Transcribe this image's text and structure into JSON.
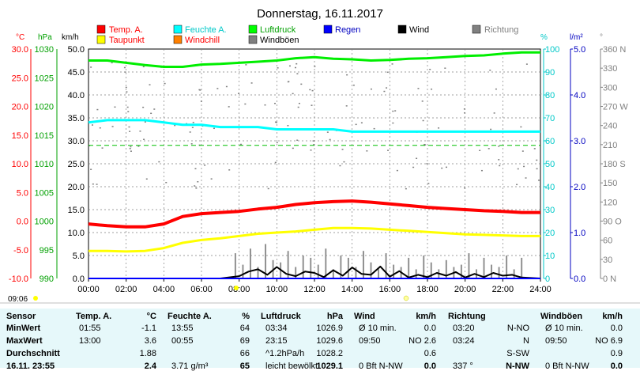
{
  "chart_data": {
    "type": "line",
    "title": "Donnerstag, 16.11.2017",
    "x_ticks": [
      "00:00",
      "02:00",
      "04:00",
      "06:00",
      "08:00",
      "10:00",
      "12:00",
      "14:00",
      "16:00",
      "18:00",
      "20:00",
      "22:00",
      "24:00"
    ],
    "axes": {
      "temp": {
        "unit": "°C",
        "ticks": [
          "30.0",
          "25.0",
          "20.0",
          "15.0",
          "10.0",
          "5.0",
          "0.0",
          "-5.0",
          "-10.0"
        ],
        "color": "#ff0000"
      },
      "pressure": {
        "unit": "hPa",
        "ticks": [
          "1030",
          "1025",
          "1020",
          "1015",
          "1010",
          "1005",
          "1000",
          "995",
          "990"
        ],
        "color": "#00a000"
      },
      "speed": {
        "unit": "km/h",
        "ticks": [
          "50.0",
          "45.0",
          "40.0",
          "35.0",
          "30.0",
          "25.0",
          "20.0",
          "15.0",
          "10.0",
          "5.0",
          "0.0"
        ],
        "color": "#000000"
      },
      "humidity": {
        "unit": "%",
        "ticks": [
          "100",
          "90",
          "80",
          "70",
          "60",
          "50",
          "40",
          "30",
          "20",
          "10",
          "0"
        ],
        "color": "#00c8c8"
      },
      "rain": {
        "unit": "l/m²",
        "ticks": [
          "5.0",
          "4.0",
          "3.0",
          "2.0",
          "1.0",
          "0.0"
        ],
        "color": "#0000c0"
      },
      "direction": {
        "unit": "°",
        "ticks": [
          "360 N",
          "330",
          "300",
          "270 W",
          "240",
          "210",
          "180 S",
          "150",
          "120",
          "90  O",
          "60",
          "30",
          "0   N"
        ],
        "color": "#808080"
      }
    },
    "legend": [
      {
        "name": "Temp. A.",
        "color": "#ff0000"
      },
      {
        "name": "Feuchte A.",
        "color": "#00ffff"
      },
      {
        "name": "Luftdruck",
        "color": "#00ff00"
      },
      {
        "name": "Regen",
        "color": "#0000ff"
      },
      {
        "name": "Wind",
        "color": "#000000"
      },
      {
        "name": "Richtung",
        "color": "#808080"
      },
      {
        "name": "Taupunkt",
        "color": "#ffff00"
      },
      {
        "name": "Windchill",
        "color": "#ff8000"
      },
      {
        "name": "Windböen",
        "color": "#808080"
      }
    ],
    "series": [
      {
        "name": "Temp. A.",
        "x": [
          0,
          1,
          2,
          3,
          4,
          5,
          6,
          7,
          8,
          9,
          10,
          11,
          12,
          13,
          14,
          15,
          16,
          17,
          18,
          19,
          20,
          21,
          22,
          23,
          24
        ],
        "values": [
          -0.5,
          -0.8,
          -1.0,
          -1.0,
          -0.5,
          0.8,
          1.3,
          1.5,
          1.7,
          2.1,
          2.4,
          2.9,
          3.2,
          3.4,
          3.5,
          3.3,
          3.0,
          2.7,
          2.4,
          2.2,
          2.0,
          1.8,
          1.7,
          1.5,
          1.5
        ]
      },
      {
        "name": "Taupunkt",
        "x": [
          0,
          1,
          2,
          3,
          4,
          5,
          6,
          7,
          8,
          9,
          10,
          11,
          12,
          13,
          14,
          15,
          16,
          17,
          18,
          19,
          20,
          21,
          22,
          23,
          24
        ],
        "values": [
          -5.2,
          -5.2,
          -5.3,
          -5.2,
          -4.7,
          -3.8,
          -3.3,
          -3.0,
          -2.6,
          -2.2,
          -2.0,
          -1.8,
          -1.5,
          -1.2,
          -1.2,
          -1.3,
          -1.5,
          -1.7,
          -1.9,
          -2.1,
          -2.3,
          -2.4,
          -2.5,
          -2.6,
          -2.6
        ]
      },
      {
        "name": "Feuchte A.",
        "x": [
          0,
          1,
          2,
          3,
          4,
          5,
          6,
          7,
          8,
          9,
          10,
          11,
          12,
          13,
          14,
          15,
          16,
          17,
          18,
          19,
          20,
          21,
          22,
          23,
          24
        ],
        "values": [
          68,
          69,
          69,
          69,
          68,
          67,
          67,
          66,
          66,
          66,
          65,
          65,
          65,
          65,
          64,
          64,
          64,
          64,
          64,
          64,
          64,
          64,
          64,
          64,
          64
        ]
      },
      {
        "name": "Luftdruck",
        "x": [
          0,
          1,
          2,
          3,
          4,
          5,
          6,
          7,
          8,
          9,
          10,
          11,
          12,
          13,
          14,
          15,
          16,
          17,
          18,
          19,
          20,
          21,
          22,
          23,
          24
        ],
        "values": [
          1028.0,
          1028.0,
          1027.6,
          1027.2,
          1026.9,
          1026.9,
          1027.3,
          1027.4,
          1027.6,
          1027.8,
          1028.0,
          1028.4,
          1028.6,
          1028.3,
          1028.2,
          1028.0,
          1028.1,
          1028.3,
          1028.4,
          1028.6,
          1028.8,
          1028.9,
          1029.2,
          1029.4,
          1029.4
        ]
      },
      {
        "name": "Wind",
        "x": [
          0,
          1,
          2,
          3,
          4,
          5,
          6,
          7,
          8,
          8.5,
          9,
          9.5,
          10,
          10.5,
          11,
          11.5,
          12,
          12.5,
          13,
          13.5,
          14,
          14.5,
          15,
          15.5,
          16,
          16.5,
          17,
          17.5,
          18,
          18.5,
          19,
          19.5,
          20,
          20.5,
          21,
          21.5,
          22,
          22.5,
          23,
          24
        ],
        "values": [
          0,
          0,
          0,
          0,
          0,
          0,
          0,
          0,
          0.5,
          1.5,
          2.0,
          0.8,
          2.5,
          1.0,
          0.5,
          1.5,
          1.2,
          0.3,
          1.8,
          0.6,
          2.4,
          1.0,
          0.8,
          2.6,
          0.4,
          1.6,
          0.2,
          0.8,
          0.3,
          1.2,
          0.6,
          1.4,
          0.2,
          1.0,
          0.3,
          1.2,
          0.6,
          0.8,
          0.2,
          0
        ]
      },
      {
        "name": "Windböen",
        "x": [
          7.8,
          8.2,
          8.6,
          9.0,
          9.4,
          9.8,
          10.2,
          10.6,
          11.0,
          11.4,
          11.8,
          12.2,
          12.6,
          13.0,
          13.4,
          13.8,
          14.2,
          14.6,
          15.0,
          15.4,
          15.8,
          16.2,
          16.6,
          17.0,
          17.4,
          17.8,
          18.2,
          18.6,
          19.0,
          19.4,
          19.8,
          20.2,
          20.6,
          21.0,
          21.4,
          21.8,
          22.2,
          22.6,
          23.0
        ],
        "values": [
          5.5,
          3.0,
          6.5,
          2.5,
          7.5,
          4.0,
          3.5,
          6.0,
          2.5,
          5.0,
          4.5,
          3.0,
          6.5,
          2.0,
          5.0,
          4.5,
          2.5,
          6.0,
          3.5,
          2.0,
          5.5,
          3.0,
          2.5,
          4.5,
          2.0,
          5.0,
          3.5,
          2.0,
          4.0,
          2.5,
          3.0,
          5.5,
          2.0,
          4.5,
          3.0,
          2.5,
          5.0,
          2.0,
          4.5
        ]
      },
      {
        "name": "Regen",
        "x": [
          0,
          24
        ],
        "values": [
          0,
          0
        ]
      }
    ],
    "ylim_speed": [
      0,
      50
    ],
    "grid": true
  },
  "footer": {
    "time_left": "09:06"
  },
  "table": {
    "headers": {
      "sensor": "Sensor",
      "temp": "Temp. A.",
      "temp_unit": "°C",
      "hum": "Feuchte A.",
      "hum_unit": "%",
      "press": "Luftdruck",
      "press_unit": "hPa",
      "wind": "Wind",
      "wind_unit": "km/h",
      "dir": "Richtung",
      "gust": "Windböen",
      "gust_unit": "km/h"
    },
    "rows": [
      {
        "label": "MinWert",
        "t_time": "01:55",
        "t_val": "-1.1",
        "h_time": "13:55",
        "h_val": "64",
        "p_time": "03:34",
        "p_val": "1026.9",
        "w_time": "Ø 10 min.",
        "w_val": "0.0",
        "d_time": "03:20",
        "d_val": "N-NO",
        "g_time": "Ø 10 min.",
        "g_val": "0.0"
      },
      {
        "label": "MaxWert",
        "t_time": "13:00",
        "t_val": "3.6",
        "h_time": "00:55",
        "h_val": "69",
        "p_time": "23:15",
        "p_val": "1029.6",
        "w_time": "09:50",
        "w_val": "NO 2.6",
        "d_time": "03:24",
        "d_val": "N",
        "g_time": "09:50",
        "g_val": "NO 6.9"
      },
      {
        "label": "Durchschnitt",
        "t_time": "",
        "t_val": "1.88",
        "h_time": "",
        "h_val": "66",
        "p_time": "^1.2hPa/h",
        "p_val": "1028.2",
        "w_time": "",
        "w_val": "0.6",
        "d_time": "",
        "d_val": "S-SW",
        "g_time": "",
        "g_val": "0.9"
      },
      {
        "label": "16.11. 23:55",
        "t_time": "",
        "t_val": "2.4",
        "h_time": "3.71 g/m³",
        "h_val": "65",
        "p_time": "leicht bewölkt",
        "p_val": "1029.1",
        "w_time": "0 Bft N-NW",
        "w_val": "0.0",
        "d_time": "337 °",
        "d_val": "N-NW",
        "g_time": "0 Bft N-NW",
        "g_val": "0.0"
      }
    ]
  }
}
